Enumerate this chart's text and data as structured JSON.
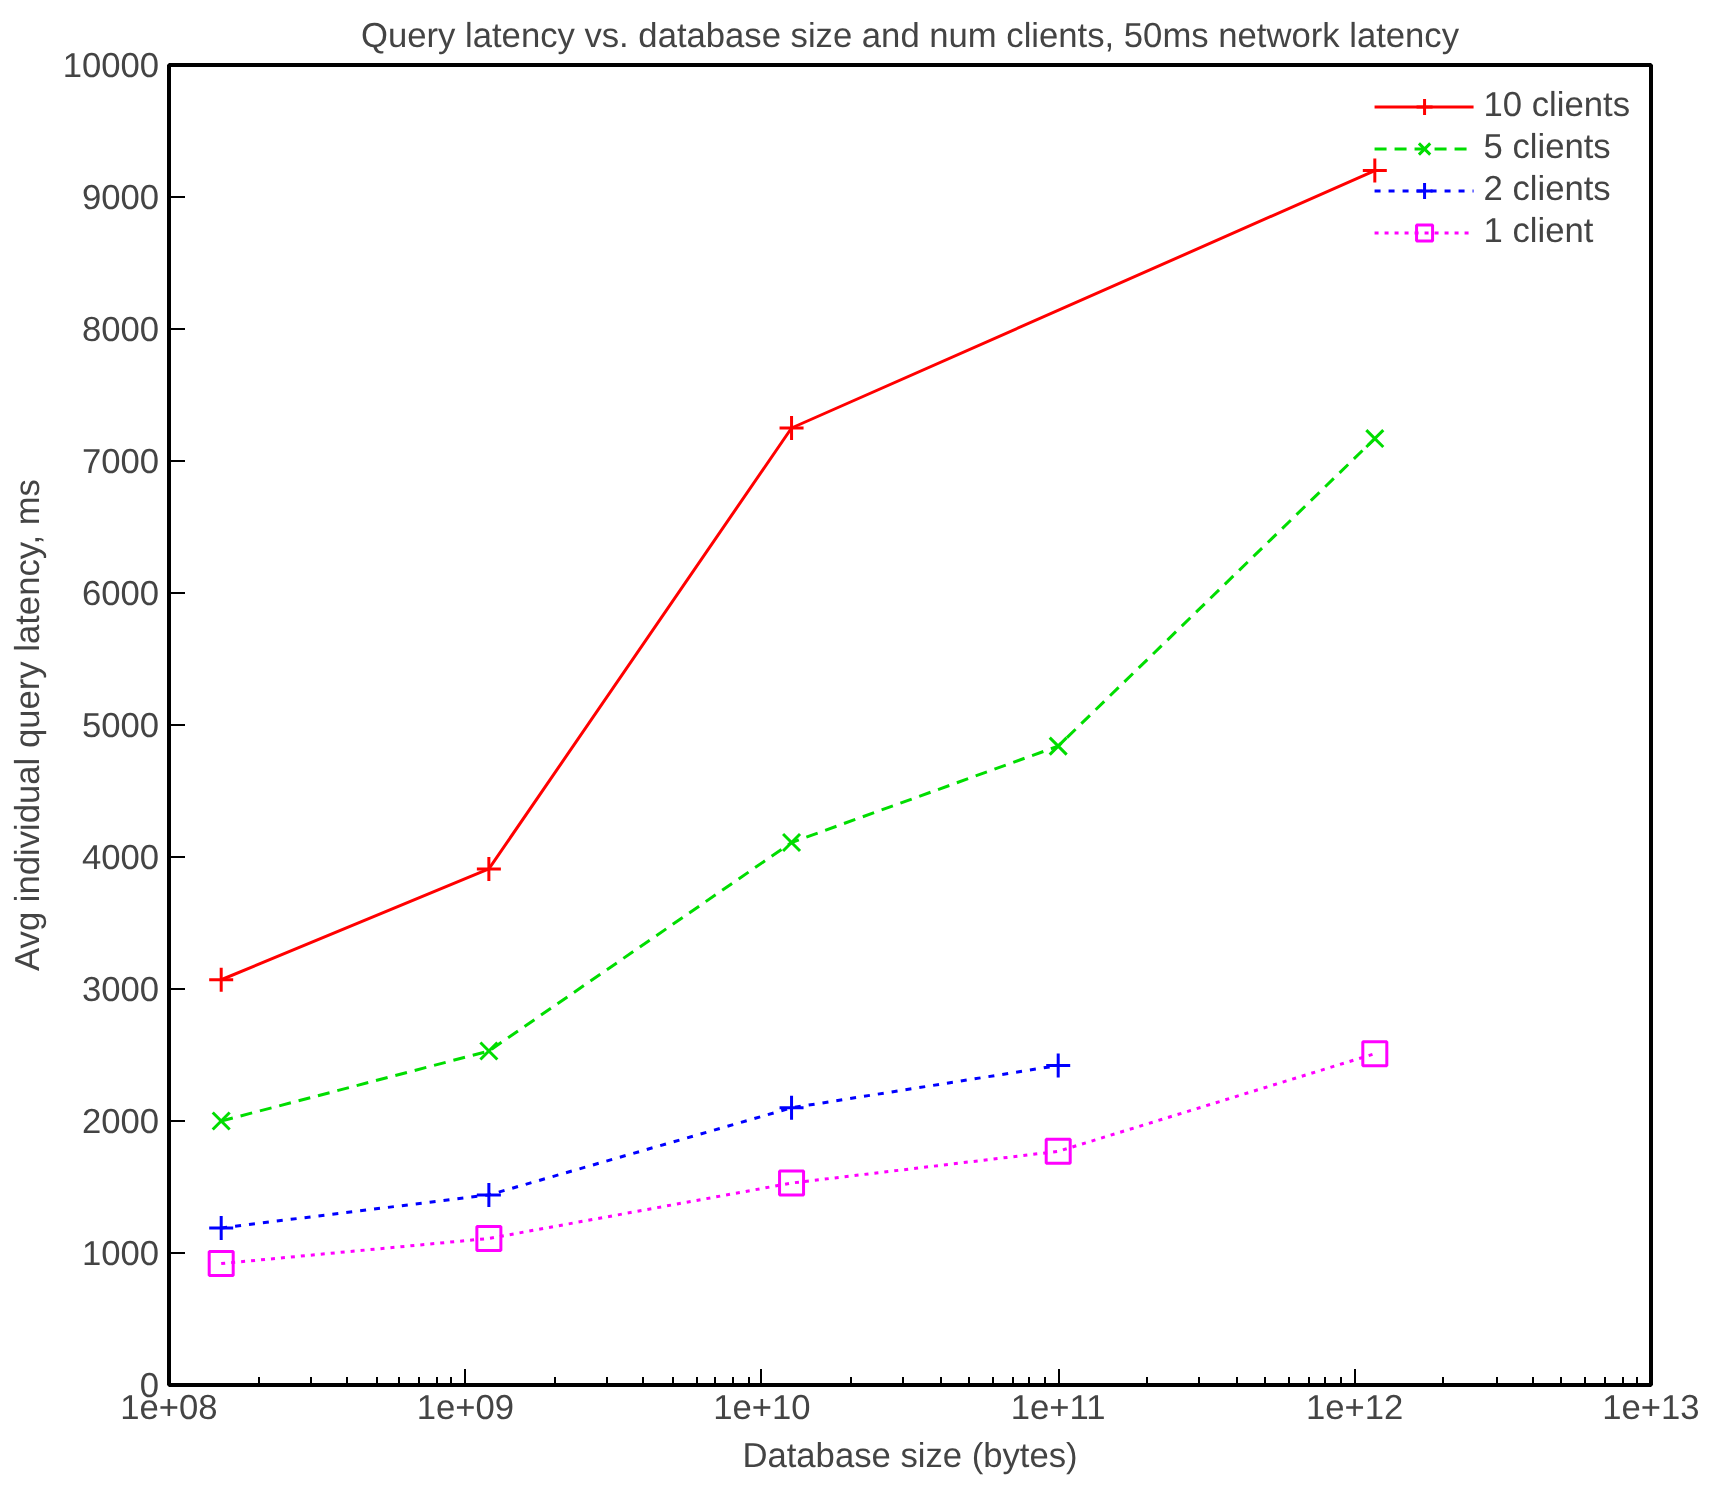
{
  "chart_data": {
    "type": "line",
    "title": "Query latency vs. database size and num clients, 50ms network latency",
    "xlabel": "Database size (bytes)",
    "ylabel": "Avg individual query latency, ms",
    "log": "x",
    "x": [
      150000000.0,
      1200000000.0,
      12600000000.0,
      100000000000.0,
      1170000000000.0
    ],
    "xlim": [
      100000000.0,
      10000000000000.0
    ],
    "xticks": [
      {
        "value": 100000000.0,
        "label": "1e+08"
      },
      {
        "value": 1000000000.0,
        "label": "1e+09"
      },
      {
        "value": 10000000000.0,
        "label": "1e+10"
      },
      {
        "value": 100000000000.0,
        "label": "1e+11"
      },
      {
        "value": 1000000000000.0,
        "label": "1e+12"
      },
      {
        "value": 10000000000000.0,
        "label": "1e+13"
      }
    ],
    "ylim": [
      0,
      10000
    ],
    "yticks": [
      0,
      1000,
      2000,
      3000,
      4000,
      5000,
      6000,
      7000,
      8000,
      9000,
      10000
    ],
    "grid": false,
    "legend": "top right",
    "series": [
      {
        "name": "10 clients",
        "color": "#ff0000",
        "marker": "cross",
        "line_style": "solid",
        "x": [
          150000000.0,
          1200000000.0,
          12600000000.0,
          1170000000000.0
        ],
        "values": [
          3070,
          3910,
          7250,
          9200
        ]
      },
      {
        "name": "5 clients",
        "color": "#00dd00",
        "marker": "x",
        "line_style": "dashed",
        "values": [
          2000,
          2530,
          4110,
          4840,
          7170
        ]
      },
      {
        "name": "2 clients",
        "color": "#0000ff",
        "marker": "cross",
        "line_style": "dashed",
        "values": [
          1190,
          1440,
          2100,
          2420,
          null
        ]
      },
      {
        "name": "1 client",
        "color": "#ff00ff",
        "marker": "square",
        "line_style": "dotted",
        "values": [
          920,
          1110,
          1530,
          1770,
          2510
        ]
      }
    ]
  }
}
